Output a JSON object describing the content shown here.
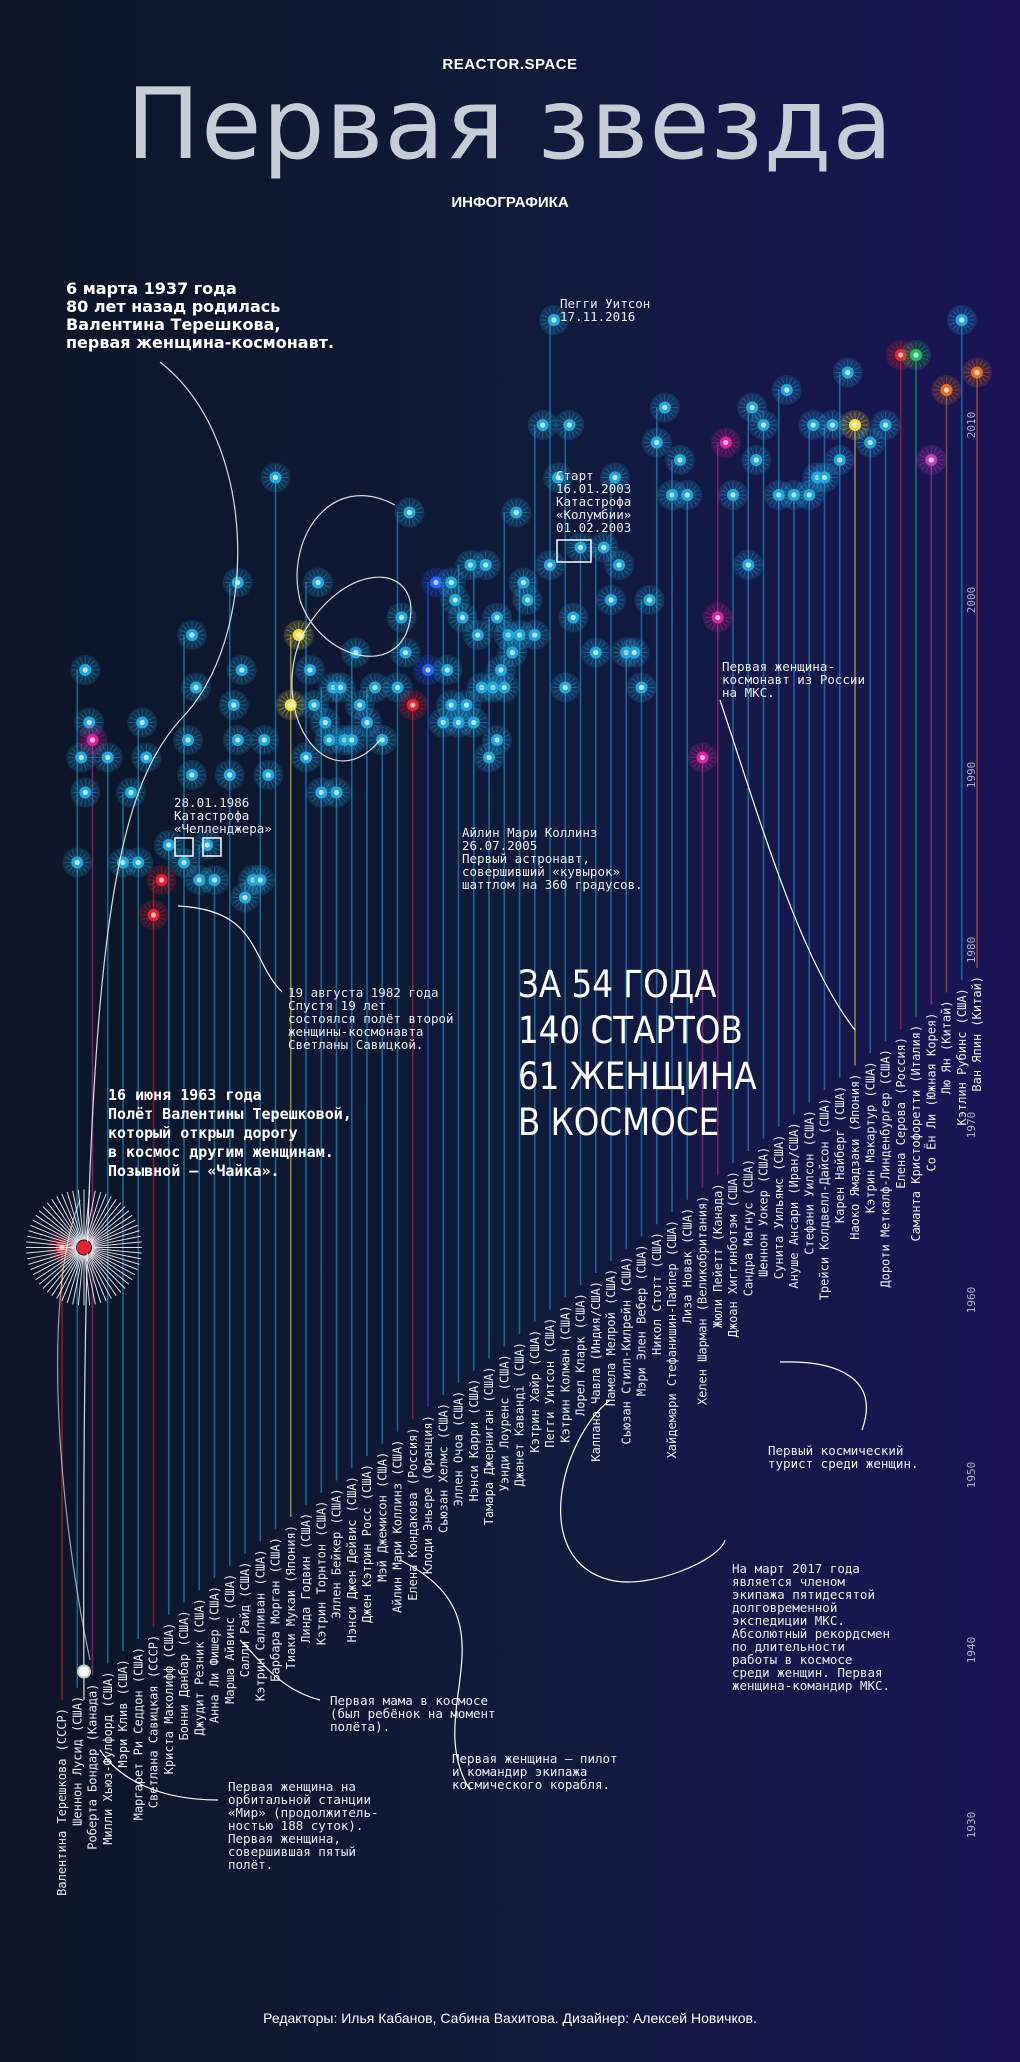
{
  "header": {
    "brand": "REACTOR.SPACE",
    "title": "Первая звезда",
    "subtitle": "ИНФОГРАФИКА"
  },
  "stats": "ЗА 54 ГОДА\n140 СТАРТОВ\n61 ЖЕНЩИНА\nВ КОСМОСЕ",
  "notes": {
    "birth": "6 марта 1937 года\n80 лет назад родилась\nВалентина Терешкова,\nпервая женщина-космонавт.",
    "whitson_top": "Пегги Уитсон\n17.11.2016",
    "columbia": "Старт\n16.01.2003\nКатастрофа\n«Колумбии»\n01.02.2003",
    "iss_russia": "Первая женщина-\nкосмонавт из России\nна МКС.",
    "challenger": "28.01.1986\nКатастрофа\n«Челленджера»",
    "collins": "Айлин Мари Коллинз\n26.07.2005\nПервый астронавт,\nсовершивший «кувырок»\nшаттлом на 360 градусов.",
    "savitskaya": "19 августа 1982 года\nСпустя 19 лет\nсостоялся полёт второй\nженщины-космонавта\nСветланы Савицкой.",
    "tereshkova_flight": "16 июня 1963 года\nПолёт Валентины Терешковой,\nкоторый открыл дорогу\nв космос другим женщинам.\nПозывной — «Чайка».",
    "tourist": "Первый космический\nтурист среди женщин.",
    "whitson_record": "На март 2017 года\nявляется членом\nэкипажа пятидесятой\nдолговременной\nэкспедиции МКС.\nАбсолютный рекордсмен\nпо длительности\nработы в космосе\nсреди женщин. Первая\nженщина-командир МКС.",
    "mother": "Первая мама в космосе\n(был ребёнок на момент\nполёта).",
    "pilot": "Первая женщина — пилот\nи командир экипажа\nкосмического корабля.",
    "mir": "Первая женщина на\nорбитальной станции\n«Мир» (продолжитель-\nностью 188 суток).\nПервая женщина,\nсовершившая пятый\nполёт."
  },
  "footer": "Редакторы: Илья Кабанов, Сабина Вахитова. Дизайнер: Алексей Новичков.",
  "colors": {
    "dot_usa": "#1fa8e0",
    "dot_ussr_russia": "#e8202a",
    "dot_japan": "#f0e040",
    "dot_canada": "#e020a0",
    "dot_france": "#2060ff",
    "dot_italia_green": "#20c060",
    "dot_china": "#e07020",
    "dot_korea": "#c040c0"
  },
  "chart_data": {
    "type": "scatter",
    "y_ticks": [
      "2010",
      "2000",
      "1990",
      "1980",
      "1970",
      "1960",
      "1950",
      "1940",
      "1930"
    ],
    "women": [
      {
        "name": "Валентина Терешкова (СССР)",
        "country": "ussr",
        "flights": [
          1963
        ]
      },
      {
        "name": "Шеннон Лусид (США)",
        "country": "usa",
        "flights": [
          1985,
          1989,
          1991,
          1993,
          1996
        ]
      },
      {
        "name": "Роберта Бондар (Канада)",
        "country": "canada",
        "flights": [
          1992
        ]
      },
      {
        "name": "Милли Хьюз-Фулфорд (США)",
        "country": "usa",
        "flights": [
          1991
        ]
      },
      {
        "name": "Мэри Клив (США)",
        "country": "usa",
        "flights": [
          1985,
          1989
        ]
      },
      {
        "name": "Маргарет Ри Седдон (США)",
        "country": "usa",
        "flights": [
          1985,
          1991,
          1993
        ]
      },
      {
        "name": "Светлана Савицкая (СССР)",
        "country": "ussr",
        "flights": [
          1982,
          1984
        ]
      },
      {
        "name": "Криста Маколифф (США)",
        "country": "usa",
        "flights": [
          1986
        ]
      },
      {
        "name": "Бонни Данбар (США)",
        "country": "usa",
        "flights": [
          1985,
          1990,
          1992,
          1995,
          1998
        ]
      },
      {
        "name": "Джудит Резник (США)",
        "country": "usa",
        "flights": [
          1984,
          1986
        ]
      },
      {
        "name": "Анна Ли Фишер (США)",
        "country": "usa",
        "flights": [
          1984
        ]
      },
      {
        "name": "Марша Айвинс (США)",
        "country": "usa",
        "flights": [
          1990,
          1992,
          1994,
          1996,
          2001
        ]
      },
      {
        "name": "Салли Райд (США)",
        "country": "usa",
        "flights": [
          1983,
          1984
        ]
      },
      {
        "name": "Кэтрин Салливан (США)",
        "country": "usa",
        "flights": [
          1984,
          1990,
          1992
        ]
      },
      {
        "name": "Барбара Морган (США)",
        "country": "usa",
        "flights": [
          2007
        ]
      },
      {
        "name": "Тиаки Мукаи (Япония)",
        "country": "japan",
        "flights": [
          1994,
          1998
        ]
      },
      {
        "name": "Линда Годвин (США)",
        "country": "usa",
        "flights": [
          1991,
          1994,
          1996,
          2001
        ]
      },
      {
        "name": "Кэтрин Торнтон (США)",
        "country": "usa",
        "flights": [
          1989,
          1992,
          1993,
          1995
        ]
      },
      {
        "name": "Эллен Бейкер (США)",
        "country": "usa",
        "flights": [
          1989,
          1992,
          1995
        ]
      },
      {
        "name": "Нэнси Джен Дейвис (США)",
        "country": "usa",
        "flights": [
          1992,
          1994,
          1997
        ]
      },
      {
        "name": "Джен Кэтрин Росс (США)",
        "country": "usa",
        "flights": [
          1993,
          1995
        ]
      },
      {
        "name": "Мэй Джемисон (США)",
        "country": "usa",
        "flights": [
          1992
        ]
      },
      {
        "name": "Айлин Мари Коллинз (США)",
        "country": "usa",
        "flights": [
          1995,
          1997,
          1999,
          2005
        ]
      },
      {
        "name": "Елена Кондакова (Россия)",
        "country": "russia",
        "flights": [
          1994
        ]
      },
      {
        "name": "Клоди Эньере (Франция)",
        "country": "france",
        "flights": [
          1996,
          2001
        ]
      },
      {
        "name": "Сьюзан Хелмс (США)",
        "country": "usa",
        "flights": [
          1993,
          1994,
          1996,
          2000,
          2001
        ]
      },
      {
        "name": "Эллен Очоа (США)",
        "country": "usa",
        "flights": [
          1993,
          1994,
          1999,
          2002
        ]
      },
      {
        "name": "Нэнси Карри (США)",
        "country": "usa",
        "flights": [
          1993,
          1995,
          1998,
          2002
        ]
      },
      {
        "name": "Тамара Джерниган (США)",
        "country": "usa",
        "flights": [
          1991,
          1992,
          1995,
          1996,
          1999
        ]
      },
      {
        "name": "Уэнди Лоуренс (США)",
        "country": "usa",
        "flights": [
          1995,
          1997,
          1998,
          2005
        ]
      },
      {
        "name": "Джанет Кавандi (США)",
        "country": "usa",
        "flights": [
          1998,
          2000,
          2001
        ]
      },
      {
        "name": "Кэтрин Хайр (США)",
        "country": "usa",
        "flights": [
          1998,
          2010
        ]
      },
      {
        "name": "Пегги Уитсон (США)",
        "country": "usa",
        "flights": [
          2002,
          2007,
          2016
        ]
      },
      {
        "name": "Кэтрин Колман (США)",
        "country": "usa",
        "flights": [
          1995,
          1999,
          2010
        ]
      },
      {
        "name": "Лорел Кларк (США)",
        "country": "usa",
        "flights": [
          2003
        ]
      },
      {
        "name": "Калпана Чавла (Индия/США)",
        "country": "usa",
        "flights": [
          1997,
          2003
        ]
      },
      {
        "name": "Памела Мелрой (США)",
        "country": "usa",
        "flights": [
          2000,
          2002,
          2007
        ]
      },
      {
        "name": "Сьюзан Стилл-Килрейн (США)",
        "country": "usa",
        "flights": [
          1997,
          1997
        ]
      },
      {
        "name": "Мэри Элен Вебер (США)",
        "country": "usa",
        "flights": [
          1995,
          2000
        ]
      },
      {
        "name": "Никол Стотт (США)",
        "country": "usa",
        "flights": [
          2009,
          2011
        ]
      },
      {
        "name": "Хайдемари Стефанишин-Пайпер (США)",
        "country": "usa",
        "flights": [
          2006,
          2008
        ]
      },
      {
        "name": "Лиза Новак (США)",
        "country": "usa",
        "flights": [
          2006
        ]
      },
      {
        "name": "Хелен Шарман (Великобритания)",
        "country": "uk",
        "flights": [
          1991
        ]
      },
      {
        "name": "Жюли Пейетт (Канада)",
        "country": "canada",
        "flights": [
          1999,
          2009
        ]
      },
      {
        "name": "Джоан Хиггинботэм (США)",
        "country": "usa",
        "flights": [
          2006
        ]
      },
      {
        "name": "Сандра Магнус (США)",
        "country": "usa",
        "flights": [
          2002,
          2008,
          2011
        ]
      },
      {
        "name": "Шеннон Уокер (США)",
        "country": "usa",
        "flights": [
          2010
        ]
      },
      {
        "name": "Сунита Уильямс (США)",
        "country": "usa",
        "flights": [
          2006,
          2012
        ]
      },
      {
        "name": "Ануше Ансари (Иран/США)",
        "country": "usa",
        "flights": [
          2006
        ]
      },
      {
        "name": "Стефани Уилсон (США)",
        "country": "usa",
        "flights": [
          2006,
          2007,
          2010
        ]
      },
      {
        "name": "Трейси Колдвелл-Дайсон (США)",
        "country": "usa",
        "flights": [
          2007,
          2010
        ]
      },
      {
        "name": "Карен Найберг (США)",
        "country": "usa",
        "flights": [
          2008,
          2013
        ]
      },
      {
        "name": "Наоко Ямадзаки (Япония)",
        "country": "japan",
        "flights": [
          2010
        ]
      },
      {
        "name": "Кэтрин Макартур (США)",
        "country": "usa",
        "flights": [
          2009
        ]
      },
      {
        "name": "Дороти Меткалф-Линденбургер (США)",
        "country": "usa",
        "flights": [
          2010
        ]
      },
      {
        "name": "Елена Серова (Россия)",
        "country": "russia",
        "flights": [
          2014
        ]
      },
      {
        "name": "Саманта Кристофоретти (Италия)",
        "country": "italia",
        "flights": [
          2014
        ]
      },
      {
        "name": "Со Ён Ли (Южная Корея)",
        "country": "korea",
        "flights": [
          2008
        ]
      },
      {
        "name": "Лю Ян (Китай)",
        "country": "china",
        "flights": [
          2012
        ]
      },
      {
        "name": "Кэтлин Рубинс (США)",
        "country": "usa",
        "flights": [
          2016
        ]
      },
      {
        "name": "Ван Япин (Китай)",
        "country": "china",
        "flights": [
          2013
        ]
      }
    ]
  }
}
